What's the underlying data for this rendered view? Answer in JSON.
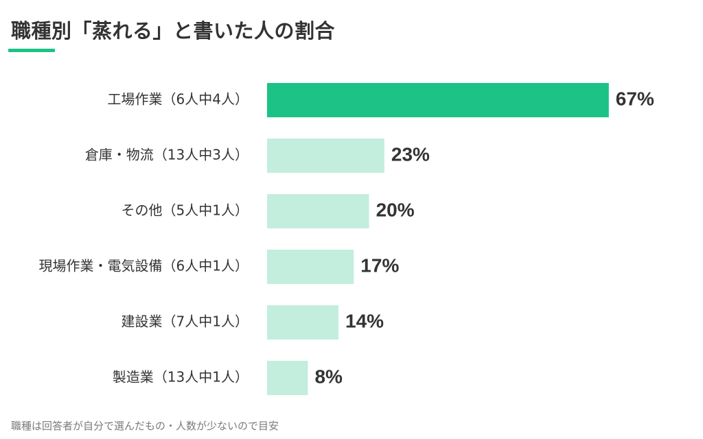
{
  "chart_data": {
    "type": "bar",
    "orientation": "horizontal",
    "title": "職種別「蒸れる」と書いた人の割合",
    "categories": [
      "工場作業（6人中4人）",
      "倉庫・物流（13人中3人）",
      "その他（5人中1人）",
      "現場作業・電気設備（6人中1人）",
      "建設業（7人中1人）",
      "製造業（13人中1人）"
    ],
    "values": [
      67,
      23,
      20,
      17,
      14,
      8
    ],
    "value_labels": [
      "67%",
      "23%",
      "20%",
      "17%",
      "14%",
      "8%"
    ],
    "xlim": [
      0,
      100
    ],
    "highlight_index": 0,
    "grid": false,
    "legend": "none"
  },
  "footnote": "職種は回答者が自分で選んだもの・人数が少ないので目安",
  "colors": {
    "highlight_bar": "#1cc286",
    "default_bar": "#c3eedd",
    "title_accent": "#1cc286",
    "text": "#333333",
    "footnote_text": "#7a7a7a"
  }
}
